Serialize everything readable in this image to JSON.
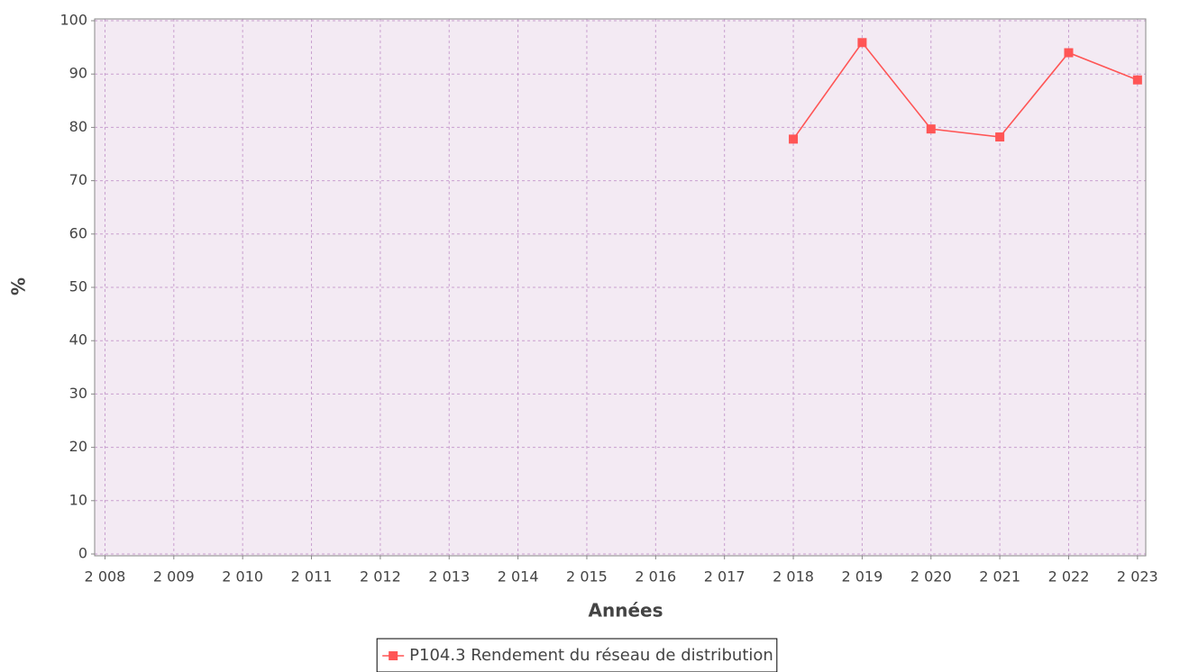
{
  "chart_data": {
    "type": "line",
    "x": [
      2018,
      2019,
      2020,
      2021,
      2022,
      2023
    ],
    "series": [
      {
        "name": "P104.3 Rendement du réseau de distribution",
        "color": "#ff5555",
        "values": [
          77.8,
          95.9,
          79.7,
          78.2,
          94.0,
          88.9
        ]
      }
    ],
    "xlabel": "Années",
    "ylabel": "%",
    "xlim": [
      2007.85,
      2023.12
    ],
    "xticks": [
      {
        "value": 2008,
        "label": "2 008"
      },
      {
        "value": 2009,
        "label": "2 009"
      },
      {
        "value": 2010,
        "label": "2 010"
      },
      {
        "value": 2011,
        "label": "2 011"
      },
      {
        "value": 2012,
        "label": "2 012"
      },
      {
        "value": 2013,
        "label": "2 013"
      },
      {
        "value": 2014,
        "label": "2 014"
      },
      {
        "value": 2015,
        "label": "2 015"
      },
      {
        "value": 2016,
        "label": "2 016"
      },
      {
        "value": 2017,
        "label": "2 017"
      },
      {
        "value": 2018,
        "label": "2 018"
      },
      {
        "value": 2019,
        "label": "2 019"
      },
      {
        "value": 2020,
        "label": "2 020"
      },
      {
        "value": 2021,
        "label": "2 021"
      },
      {
        "value": 2022,
        "label": "2 022"
      },
      {
        "value": 2023,
        "label": "2 023"
      }
    ],
    "ylim": [
      0,
      100
    ],
    "yticks": [
      0,
      10,
      20,
      30,
      40,
      50,
      60,
      70,
      80,
      90,
      100
    ],
    "grid": true,
    "legend": "bottom"
  }
}
